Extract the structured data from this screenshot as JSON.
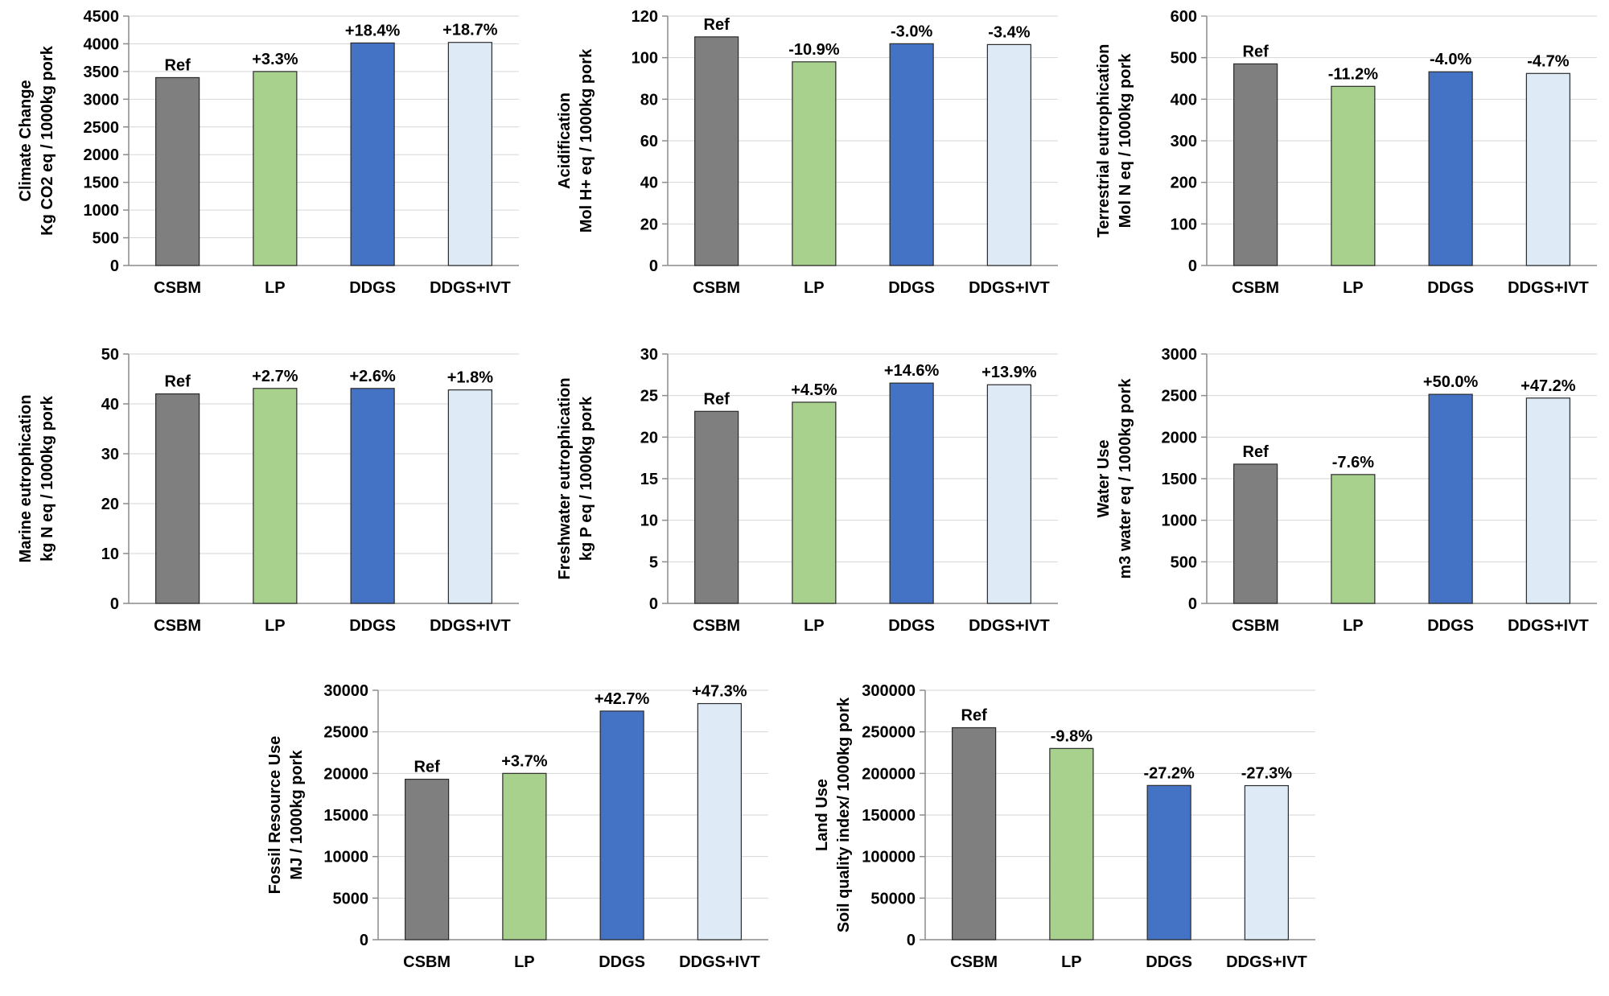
{
  "chart_data": [
    {
      "type": "bar",
      "categories": [
        "CSBM",
        "LP",
        "DDGS",
        "DDGS+IVT"
      ],
      "values": [
        3390,
        3500,
        4015,
        4025
      ],
      "data_labels": [
        "Ref",
        "+3.3%",
        "+18.4%",
        "+18.7%"
      ],
      "ylabel_lines": [
        "Climate Change",
        "Kg CO2 eq / 1000kg pork"
      ],
      "ylim": [
        0,
        4500
      ],
      "yticks": [
        0,
        500,
        1000,
        1500,
        2000,
        2500,
        3000,
        3500,
        4000,
        4500
      ],
      "colors": [
        "#7f7f7f",
        "#a9d18e",
        "#4472c4",
        "#deebf7"
      ],
      "grid": true
    },
    {
      "type": "bar",
      "categories": [
        "CSBM",
        "LP",
        "DDGS",
        "DDGS+IVT"
      ],
      "values": [
        110,
        98,
        106.7,
        106.3
      ],
      "data_labels": [
        "Ref",
        "-10.9%",
        "-3.0%",
        "-3.4%"
      ],
      "ylabel_lines": [
        "Acidification",
        "Mol H+ eq / 1000kg pork"
      ],
      "ylim": [
        0,
        120
      ],
      "yticks": [
        0,
        20,
        40,
        60,
        80,
        100,
        120
      ],
      "colors": [
        "#7f7f7f",
        "#a9d18e",
        "#4472c4",
        "#deebf7"
      ],
      "grid": true
    },
    {
      "type": "bar",
      "categories": [
        "CSBM",
        "LP",
        "DDGS",
        "DDGS+IVT"
      ],
      "values": [
        485,
        431,
        466,
        462
      ],
      "data_labels": [
        "Ref",
        "-11.2%",
        "-4.0%",
        "-4.7%"
      ],
      "ylabel_lines": [
        "Terrestrial eutrophication",
        "Mol N eq / 1000kg pork"
      ],
      "ylim": [
        0,
        600
      ],
      "yticks": [
        0,
        100,
        200,
        300,
        400,
        500,
        600
      ],
      "colors": [
        "#7f7f7f",
        "#a9d18e",
        "#4472c4",
        "#deebf7"
      ],
      "grid": true
    },
    {
      "type": "bar",
      "categories": [
        "CSBM",
        "LP",
        "DDGS",
        "DDGS+IVT"
      ],
      "values": [
        42,
        43.1,
        43.1,
        42.8
      ],
      "data_labels": [
        "Ref",
        "+2.7%",
        "+2.6%",
        "+1.8%"
      ],
      "ylabel_lines": [
        "Marine eutrophication",
        "kg N eq / 1000kg pork"
      ],
      "ylim": [
        0,
        50
      ],
      "yticks": [
        0,
        10,
        20,
        30,
        40,
        50
      ],
      "colors": [
        "#7f7f7f",
        "#a9d18e",
        "#4472c4",
        "#deebf7"
      ],
      "grid": true
    },
    {
      "type": "bar",
      "categories": [
        "CSBM",
        "LP",
        "DDGS",
        "DDGS+IVT"
      ],
      "values": [
        23.1,
        24.2,
        26.5,
        26.3
      ],
      "data_labels": [
        "Ref",
        "+4.5%",
        "+14.6%",
        "+13.9%"
      ],
      "ylabel_lines": [
        "Freshwater eutrophication",
        "kg P eq / 1000kg pork"
      ],
      "ylim": [
        0,
        30
      ],
      "yticks": [
        0,
        5,
        10,
        15,
        20,
        25,
        30
      ],
      "colors": [
        "#7f7f7f",
        "#a9d18e",
        "#4472c4",
        "#deebf7"
      ],
      "grid": true
    },
    {
      "type": "bar",
      "categories": [
        "CSBM",
        "LP",
        "DDGS",
        "DDGS+IVT"
      ],
      "values": [
        1675,
        1550,
        2515,
        2470
      ],
      "data_labels": [
        "Ref",
        "-7.6%",
        "+50.0%",
        "+47.2%"
      ],
      "ylabel_lines": [
        "Water Use",
        "m3 water eq / 1000kg pork"
      ],
      "ylim": [
        0,
        3000
      ],
      "yticks": [
        0,
        500,
        1000,
        1500,
        2000,
        2500,
        3000
      ],
      "colors": [
        "#7f7f7f",
        "#a9d18e",
        "#4472c4",
        "#deebf7"
      ],
      "grid": true
    },
    {
      "type": "bar",
      "categories": [
        "CSBM",
        "LP",
        "DDGS",
        "DDGS+IVT"
      ],
      "values": [
        19300,
        20000,
        27500,
        28400
      ],
      "data_labels": [
        "Ref",
        "+3.7%",
        "+42.7%",
        "+47.3%"
      ],
      "ylabel_lines": [
        "Fossil Resource Use",
        "MJ / 1000kg pork"
      ],
      "ylim": [
        0,
        30000
      ],
      "yticks": [
        0,
        5000,
        10000,
        15000,
        20000,
        25000,
        30000
      ],
      "colors": [
        "#7f7f7f",
        "#a9d18e",
        "#4472c4",
        "#deebf7"
      ],
      "grid": true
    },
    {
      "type": "bar",
      "categories": [
        "CSBM",
        "LP",
        "DDGS",
        "DDGS+IVT"
      ],
      "values": [
        255000,
        230000,
        185500,
        185300
      ],
      "data_labels": [
        "Ref",
        "-9.8%",
        "-27.2%",
        "-27.3%"
      ],
      "ylabel_lines": [
        "Land Use",
        "Soil quality index/ 1000kg pork"
      ],
      "ylim": [
        0,
        300000
      ],
      "yticks": [
        0,
        50000,
        100000,
        150000,
        200000,
        250000,
        300000
      ],
      "colors": [
        "#7f7f7f",
        "#a9d18e",
        "#4472c4",
        "#deebf7"
      ],
      "grid": true
    }
  ]
}
